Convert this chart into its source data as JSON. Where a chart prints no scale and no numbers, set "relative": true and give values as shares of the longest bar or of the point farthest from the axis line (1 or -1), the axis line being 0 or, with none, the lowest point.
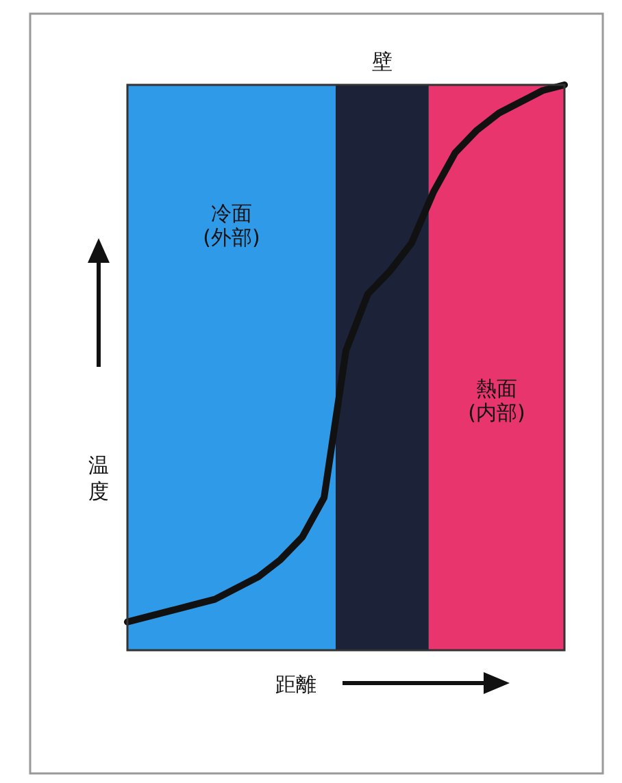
{
  "chart_data": {
    "type": "line",
    "relative": true,
    "categories": [
      null,
      null,
      null,
      null,
      null,
      null,
      null,
      null,
      null,
      null,
      null,
      null,
      null,
      null,
      null,
      null,
      null,
      null,
      null,
      null,
      null
    ],
    "series": [
      {
        "color": "#111111",
        "values": [
          0.05,
          0.06,
          0.07,
          0.08,
          0.09,
          0.11,
          0.13,
          0.16,
          0.2,
          0.27,
          0.53,
          0.63,
          0.67,
          0.72,
          0.81,
          0.88,
          0.92,
          0.95,
          0.97,
          0.99,
          1
        ]
      }
    ],
    "xlabel": "距離",
    "ylabel": "温度",
    "annotations": [
      "冷面\n(外部)",
      "壁",
      "熱面\n(内部)"
    ]
  }
}
